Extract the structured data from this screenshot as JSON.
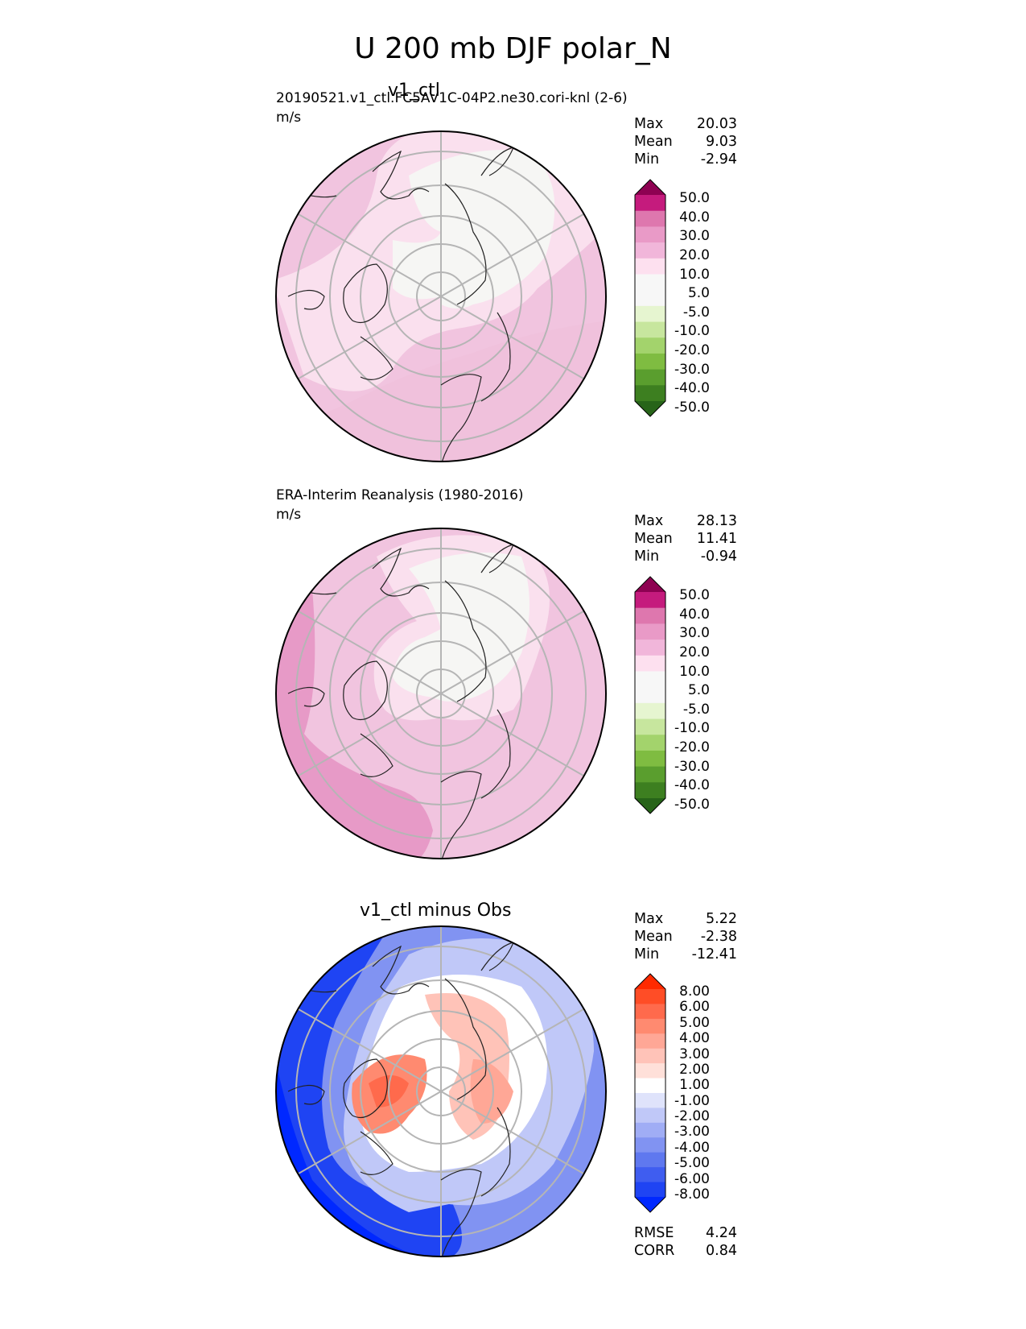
{
  "title": "U 200 mb DJF polar_N",
  "panels": [
    {
      "title": "v1_ctl",
      "run": "20190521.v1_ctl.FC5AV1C-04P2.ne30.cori-knl (2-6)",
      "units": "m/s",
      "stats": [
        {
          "label": "Max",
          "value": "20.03"
        },
        {
          "label": "Mean",
          "value": "9.03"
        },
        {
          "label": "Min",
          "value": "-2.94"
        }
      ]
    },
    {
      "title": "",
      "run": "ERA-Interim Reanalysis (1980-2016)",
      "units": "m/s",
      "stats": [
        {
          "label": "Max",
          "value": "28.13"
        },
        {
          "label": "Mean",
          "value": "11.41"
        },
        {
          "label": "Min",
          "value": "-0.94"
        }
      ]
    },
    {
      "title": "v1_ctl minus Obs",
      "run": "",
      "units": "",
      "stats": [
        {
          "label": "Max",
          "value": "5.22"
        },
        {
          "label": "Mean",
          "value": "-2.38"
        },
        {
          "label": "Min",
          "value": "-12.41"
        }
      ],
      "metrics": [
        {
          "label": "RMSE",
          "value": "4.24"
        },
        {
          "label": "CORR",
          "value": "0.84"
        }
      ]
    }
  ],
  "colorbars": {
    "field": {
      "labels": [
        "50.0",
        "40.0",
        "30.0",
        "20.0",
        "10.0",
        "5.0",
        "-5.0",
        "-10.0",
        "-20.0",
        "-30.0",
        "-40.0",
        "-50.0"
      ],
      "colors": [
        "#8e0152",
        "#c51b7d",
        "#de77ae",
        "#e99ac7",
        "#f1b6da",
        "#fde0ef",
        "#f7f7f7",
        "#f7f7f7",
        "#e6f5d0",
        "#c7e69e",
        "#a3d36c",
        "#7fbc41",
        "#5a9e2e",
        "#3d7f20",
        "#276419"
      ]
    },
    "diff": {
      "labels": [
        "8.00",
        "6.00",
        "5.00",
        "4.00",
        "3.00",
        "2.00",
        "1.00",
        "-1.00",
        "-2.00",
        "-3.00",
        "-4.00",
        "-5.00",
        "-6.00",
        "-8.00"
      ],
      "colors": [
        "#ff2a00",
        "#ff4d26",
        "#ff6a4c",
        "#ff8a70",
        "#ffa796",
        "#ffc3b8",
        "#ffe0d9",
        "#ffffff",
        "#dfe3fb",
        "#c0c8f8",
        "#a0adf5",
        "#8193f2",
        "#5f78ef",
        "#3f5df0",
        "#1f44f3",
        "#0028ff"
      ]
    }
  },
  "maps": {
    "v1_ctl": {
      "projection": "north polar stereographic",
      "levels": "10 to 20 m/s dominant, near 0 over Arctic/Asia sector"
    },
    "obs": {
      "projection": "north polar stereographic",
      "levels": "10 to 30 m/s, strongest over North Pacific"
    },
    "diff": {
      "projection": "north polar stereographic",
      "levels": "negative mid-latitudes, positive over Arctic"
    }
  }
}
